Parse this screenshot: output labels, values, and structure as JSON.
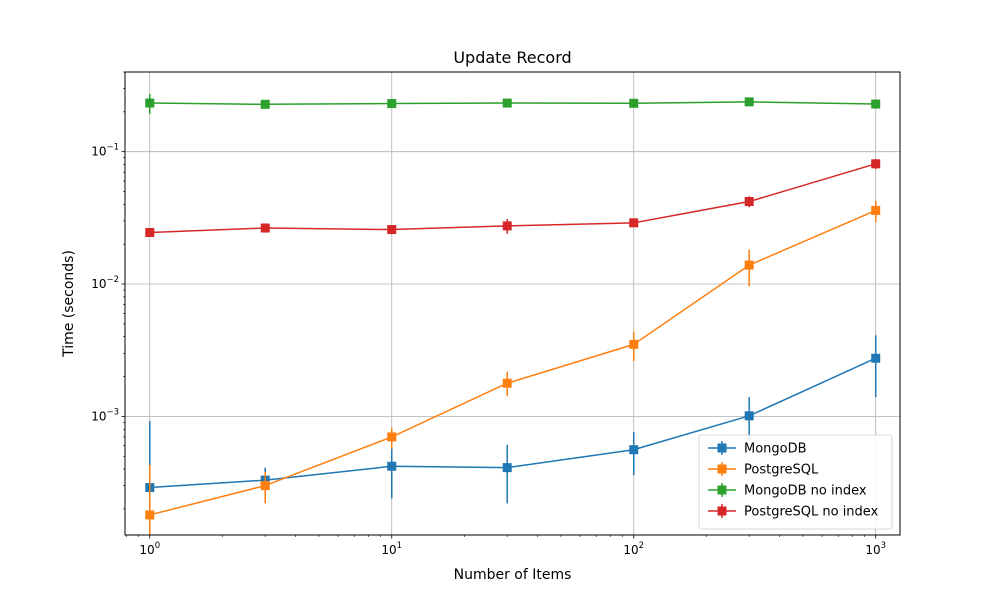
{
  "chart_data": {
    "type": "line",
    "title": "Update Record",
    "xlabel": "Number of Items",
    "ylabel": "Time (seconds)",
    "xscale": "log",
    "yscale": "log",
    "xlim": [
      0.79,
      1260
    ],
    "ylim": [
      0.000127,
      0.4
    ],
    "xticks": [
      {
        "value": 1,
        "base": "10",
        "exp": "0"
      },
      {
        "value": 10,
        "base": "10",
        "exp": "1"
      },
      {
        "value": 100,
        "base": "10",
        "exp": "2"
      },
      {
        "value": 1000,
        "base": "10",
        "exp": "3"
      }
    ],
    "yticks": [
      {
        "value": 0.001,
        "base": "10",
        "exp": "−3"
      },
      {
        "value": 0.01,
        "base": "10",
        "exp": "−2"
      },
      {
        "value": 0.1,
        "base": "10",
        "exp": "−1"
      }
    ],
    "grid": true,
    "legend_position": "lower-right",
    "x": [
      1,
      3,
      10,
      30,
      100,
      300,
      1000
    ],
    "series": [
      {
        "name": "MongoDB",
        "color": "#1f77b4",
        "values": [
          0.00029,
          0.00033,
          0.00042,
          0.00041,
          0.00056,
          0.00101,
          0.00275
        ],
        "err_low": [
          0.000135,
          0.00025,
          0.00024,
          0.00022,
          0.00036,
          0.00066,
          0.0014
        ],
        "err_high": [
          0.00092,
          0.00041,
          0.00059,
          0.00061,
          0.00076,
          0.0014,
          0.0041
        ]
      },
      {
        "name": "PostgreSQL",
        "color": "#ff7f0e",
        "values": [
          0.00018,
          0.0003,
          0.0007,
          0.00178,
          0.0035,
          0.0139,
          0.036
        ],
        "err_low": [
          0.000127,
          0.00022,
          0.00057,
          0.00142,
          0.00262,
          0.0096,
          0.0293
        ],
        "err_high": [
          0.00043,
          0.00038,
          0.00082,
          0.00218,
          0.00437,
          0.0182,
          0.0427
        ]
      },
      {
        "name": "MongoDB no index",
        "color": "#2ca02c",
        "values": [
          0.233,
          0.228,
          0.231,
          0.233,
          0.232,
          0.238,
          0.229
        ],
        "err_low": [
          0.193,
          0.218,
          0.221,
          0.223,
          0.222,
          0.226,
          0.219
        ],
        "err_high": [
          0.273,
          0.238,
          0.241,
          0.243,
          0.242,
          0.25,
          0.239
        ]
      },
      {
        "name": "PostgreSQL no index",
        "color": "#d62728",
        "values": [
          0.0245,
          0.0265,
          0.0258,
          0.0275,
          0.029,
          0.042,
          0.081
        ],
        "err_low": [
          0.0235,
          0.0245,
          0.025,
          0.024,
          0.028,
          0.038,
          0.074
        ],
        "err_high": [
          0.0255,
          0.0285,
          0.0266,
          0.031,
          0.03,
          0.046,
          0.088
        ]
      }
    ]
  }
}
